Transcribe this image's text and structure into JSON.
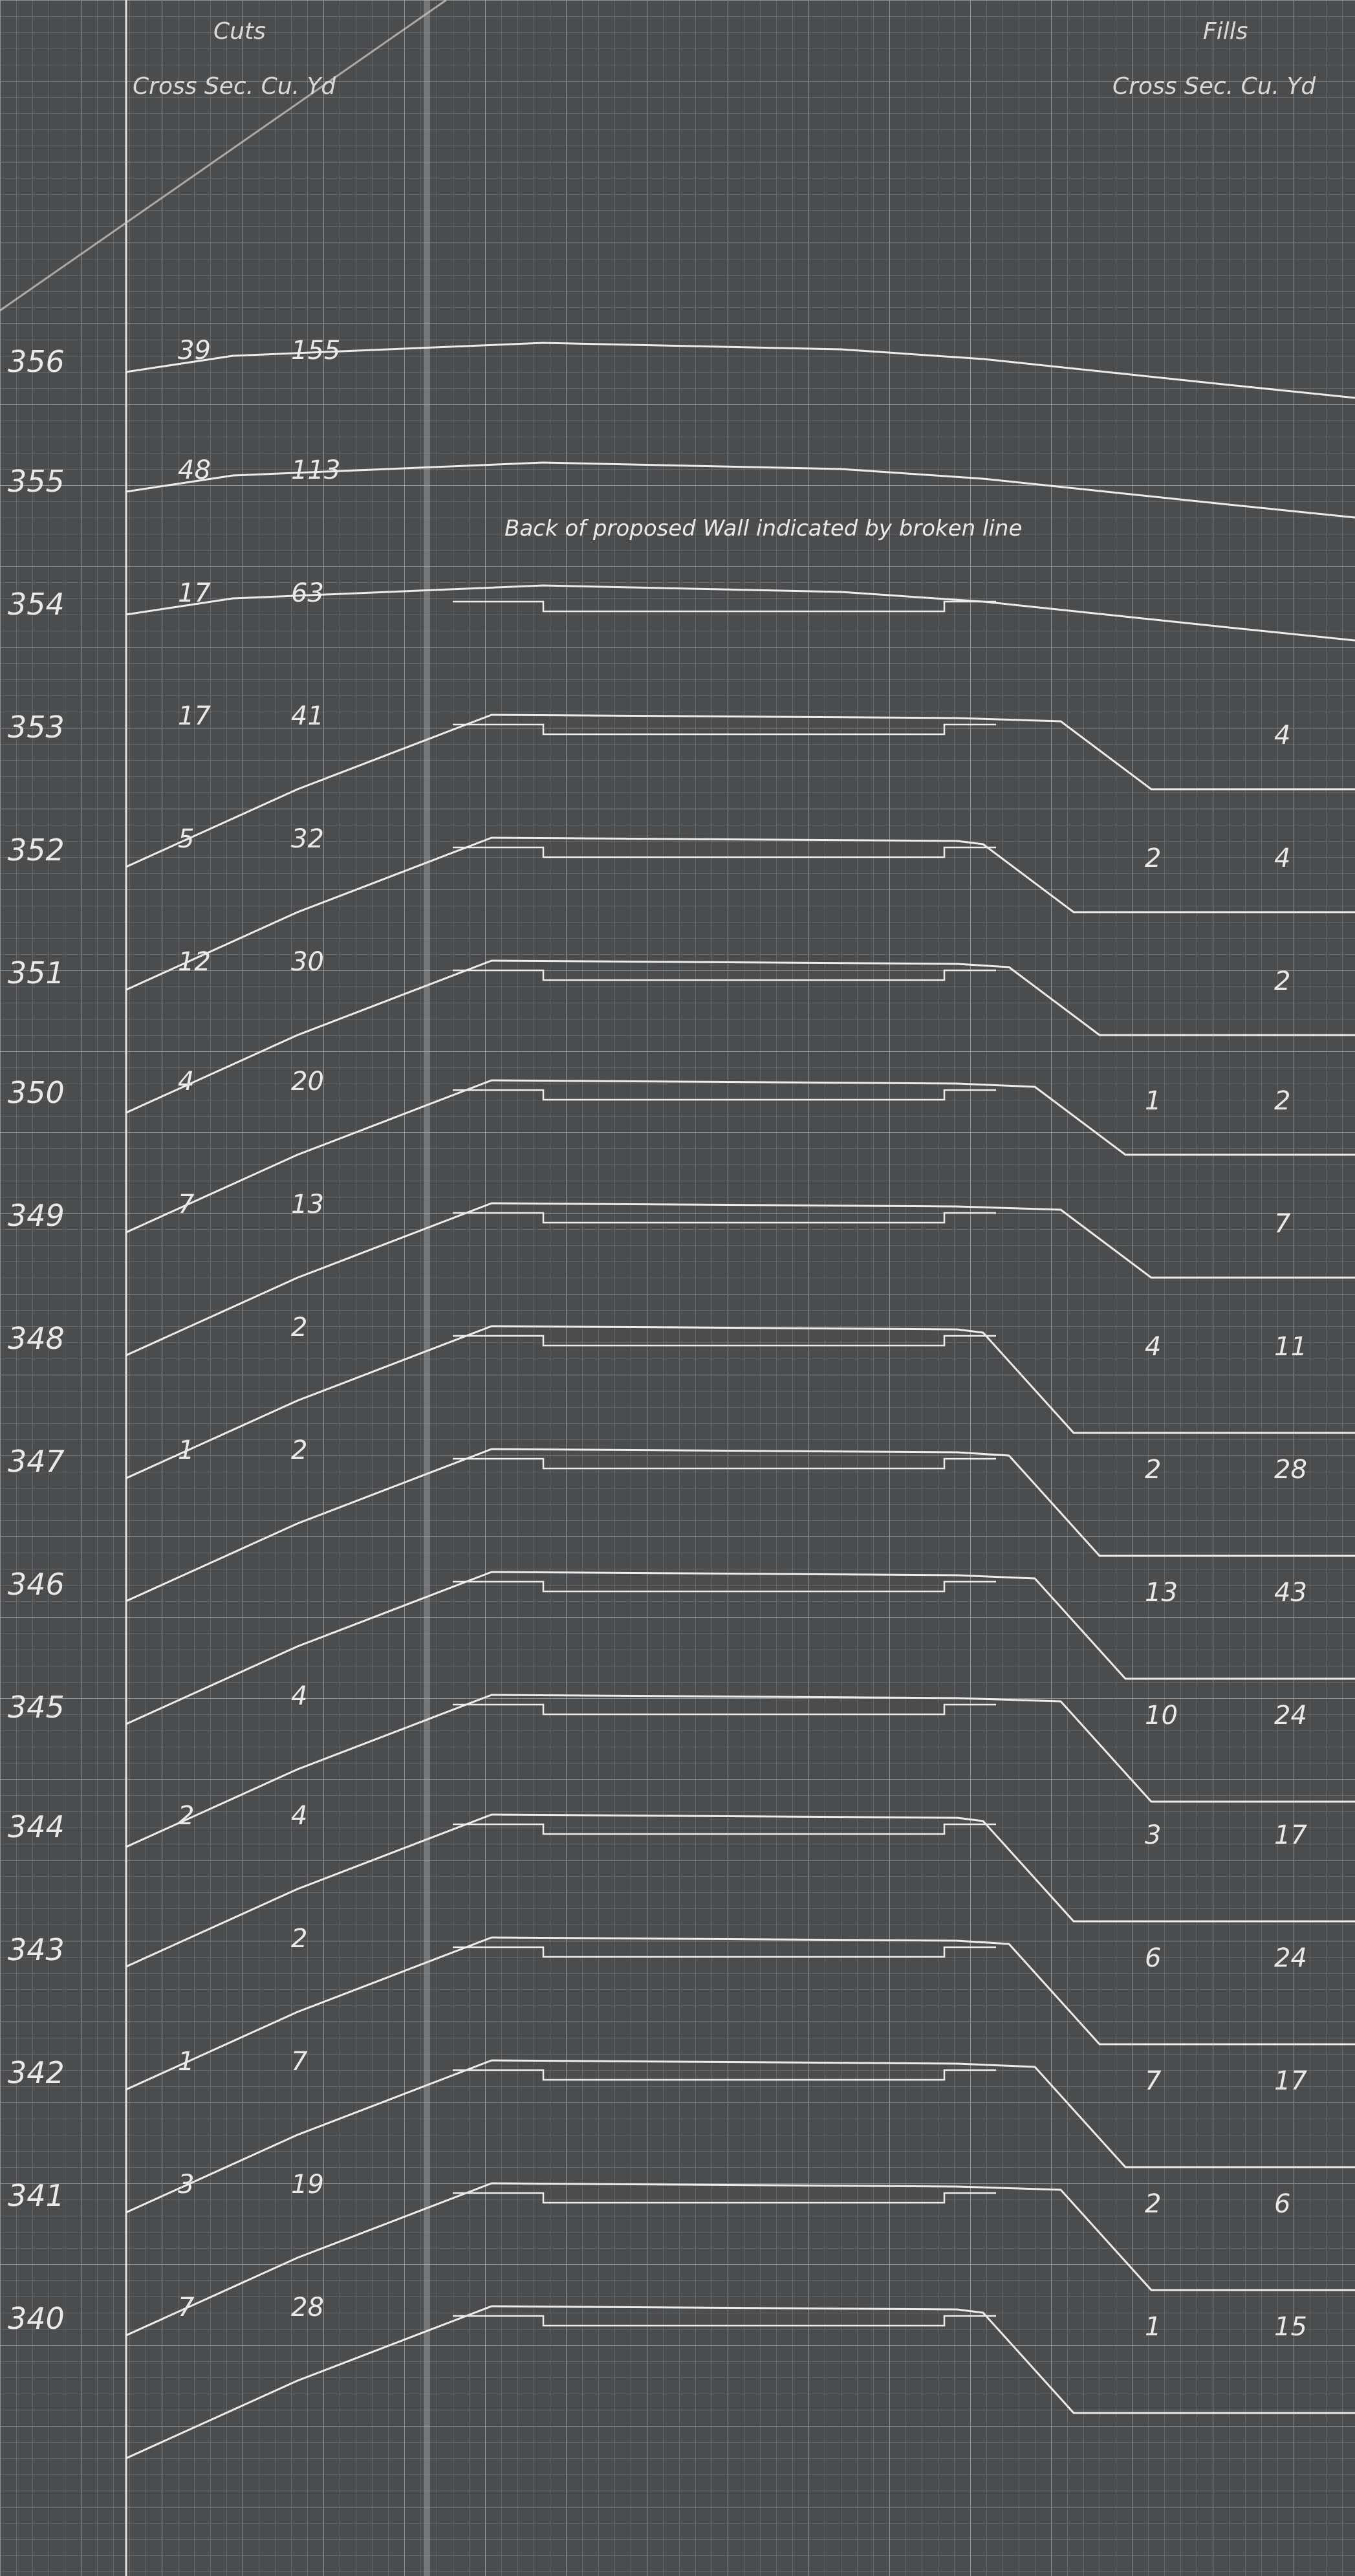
{
  "headers": {
    "cuts_title": "Cuts",
    "cuts_sub": "Cross Sec. Cu. Yd",
    "fills_title": "Fills",
    "fills_sub": "Cross Sec. Cu. Yd"
  },
  "note": "Back of proposed Wall indicated by broken line",
  "stations": [
    {
      "station": "356",
      "cut_sec": "39",
      "cut_yd": "155",
      "fill_sec": "",
      "fill_yd": ""
    },
    {
      "station": "355",
      "cut_sec": "48",
      "cut_yd": "113",
      "fill_sec": "",
      "fill_yd": ""
    },
    {
      "station": "354",
      "cut_sec": "17",
      "cut_yd": "63",
      "fill_sec": "",
      "fill_yd": ""
    },
    {
      "station": "353",
      "cut_sec": "17",
      "cut_yd": "41",
      "fill_sec": "",
      "fill_yd": "4"
    },
    {
      "station": "352",
      "cut_sec": "5",
      "cut_yd": "32",
      "fill_sec": "2",
      "fill_yd": "4"
    },
    {
      "station": "351",
      "cut_sec": "12",
      "cut_yd": "30",
      "fill_sec": "",
      "fill_yd": "2"
    },
    {
      "station": "350",
      "cut_sec": "4",
      "cut_yd": "20",
      "fill_sec": "1",
      "fill_yd": "2"
    },
    {
      "station": "349",
      "cut_sec": "7",
      "cut_yd": "13",
      "fill_sec": "",
      "fill_yd": "7"
    },
    {
      "station": "348",
      "cut_sec": "",
      "cut_yd": "2",
      "fill_sec": "4",
      "fill_yd": "11"
    },
    {
      "station": "347",
      "cut_sec": "1",
      "cut_yd": "2",
      "fill_sec": "2",
      "fill_yd": "28"
    },
    {
      "station": "346",
      "cut_sec": "",
      "cut_yd": "",
      "fill_sec": "13",
      "fill_yd": "43"
    },
    {
      "station": "345",
      "cut_sec": "",
      "cut_yd": "4",
      "fill_sec": "10",
      "fill_yd": "24"
    },
    {
      "station": "344",
      "cut_sec": "2",
      "cut_yd": "4",
      "fill_sec": "3",
      "fill_yd": "17"
    },
    {
      "station": "343",
      "cut_sec": "",
      "cut_yd": "2",
      "fill_sec": "6",
      "fill_yd": "24"
    },
    {
      "station": "342",
      "cut_sec": "1",
      "cut_yd": "7",
      "fill_sec": "7",
      "fill_yd": "17"
    },
    {
      "station": "341",
      "cut_sec": "3",
      "cut_yd": "19",
      "fill_sec": "2",
      "fill_yd": "6"
    },
    {
      "station": "340",
      "cut_sec": "7",
      "cut_yd": "28",
      "fill_sec": "1",
      "fill_yd": "15"
    }
  ]
}
